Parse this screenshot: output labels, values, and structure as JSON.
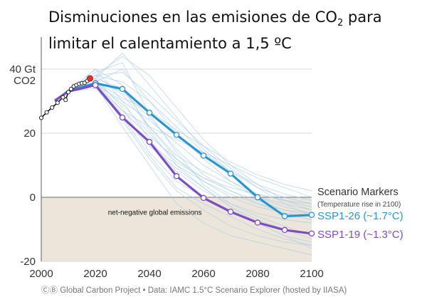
{
  "title": {
    "line1_pre": "Disminuciones en las emisiones de CO",
    "line1_sub": "2",
    "line1_post": " para",
    "line2": "limitar el calentamiento a 1,5 ºC"
  },
  "footer": "ⒸⒷ Global Carbon Project  •  Data: IAMC 1.5°C Scenario Explorer (hosted by IIASA)",
  "chart_data": {
    "type": "line",
    "title": "Disminuciones en las emisiones de CO2 para limitar el calentamiento a 1,5 ºC",
    "ylabel": "CO2",
    "ylim": [
      -20,
      50
    ],
    "xlim": [
      2000,
      2100
    ],
    "x_ticks": [
      "2000",
      "2020",
      "2040",
      "2060",
      "2080",
      "2100"
    ],
    "y_ticks": [
      {
        "value": 40,
        "label": "40 Gt"
      },
      {
        "value": 20,
        "label": "20"
      },
      {
        "value": 0,
        "label": "0"
      },
      {
        "value": -20,
        "label": "-20"
      }
    ],
    "y_unit_label": "CO2",
    "grid": true,
    "shaded_region": {
      "y_from": 0,
      "y_to": -20,
      "label": "net-negative global emissions",
      "color": "#ece6da"
    },
    "legend_title": "Scenario Markers",
    "legend_subtitle": "(Temperature rise in 2100)",
    "historical": {
      "color": "#111111",
      "x": [
        2000,
        2002,
        2004,
        2006,
        2008,
        2009,
        2010,
        2011,
        2012,
        2013,
        2014,
        2015,
        2016,
        2017,
        2018
      ],
      "y": [
        24.8,
        26.5,
        28.0,
        29.5,
        31.2,
        30.4,
        32.8,
        33.8,
        34.6,
        35.0,
        35.4,
        35.6,
        35.7,
        36.3,
        37.1
      ],
      "highlight_last_color": "#e8322c"
    },
    "series": [
      {
        "name": "SSP1-26 (~1.7°C)",
        "color": "#2b95d2",
        "x": [
          2005,
          2010,
          2020,
          2030,
          2040,
          2050,
          2060,
          2070,
          2080,
          2090,
          2100
        ],
        "y": [
          30.0,
          33.2,
          35.6,
          33.8,
          26.4,
          19.5,
          13.0,
          7.4,
          0.0,
          -5.9,
          -5.5
        ]
      },
      {
        "name": "SSP1-19 (~1.3°C)",
        "color": "#7d4cc4",
        "x": [
          2005,
          2010,
          2020,
          2030,
          2040,
          2050,
          2060,
          2070,
          2080,
          2090,
          2100
        ],
        "y": [
          30.2,
          33.0,
          35.0,
          24.9,
          17.3,
          6.6,
          -0.2,
          -4.5,
          -7.9,
          -10.2,
          -11.3
        ]
      }
    ],
    "background_scenarios": {
      "color": "#aecfe8",
      "x": [
        2010,
        2020,
        2030,
        2040,
        2050,
        2060,
        2070,
        2080,
        2090,
        2100
      ],
      "series": [
        [
          33,
          36,
          40,
          30,
          20,
          12,
          5,
          0,
          -3,
          -5
        ],
        [
          33,
          38,
          32,
          22,
          12,
          5,
          0,
          -3,
          -5,
          -6
        ],
        [
          33,
          40,
          30,
          18,
          8,
          2,
          -2,
          -6,
          -9,
          -12
        ],
        [
          33,
          35,
          24,
          12,
          2,
          -4,
          -9,
          -12,
          -14,
          -15
        ],
        [
          33,
          37,
          45,
          35,
          25,
          15,
          8,
          3,
          0,
          -2
        ],
        [
          33,
          36,
          27,
          19,
          12,
          6,
          2,
          -1,
          -4,
          -6
        ],
        [
          33,
          39,
          42,
          26,
          14,
          4,
          -2,
          -5,
          -7,
          -8
        ],
        [
          33,
          35,
          30,
          24,
          17,
          10,
          5,
          1,
          -1,
          -2
        ],
        [
          33,
          38,
          36,
          30,
          22,
          14,
          8,
          4,
          1,
          -1
        ],
        [
          33,
          35,
          26,
          16,
          9,
          3,
          -3,
          -7,
          -10,
          -13
        ],
        [
          33,
          37,
          28,
          14,
          5,
          0,
          -4,
          -8,
          -12,
          -16
        ],
        [
          33,
          36,
          33,
          25,
          15,
          7,
          2,
          -2,
          -5,
          -7
        ],
        [
          33,
          34,
          25,
          17,
          10,
          5,
          1,
          -2,
          -4,
          -5
        ],
        [
          33,
          40,
          35,
          21,
          10,
          3,
          -3,
          -8,
          -12,
          -14
        ],
        [
          33,
          36,
          31,
          27,
          21,
          16,
          11,
          7,
          4,
          2
        ],
        [
          33,
          35,
          22,
          10,
          -2,
          -8,
          -12,
          -14,
          -16,
          -18
        ],
        [
          33,
          38,
          44,
          38,
          28,
          18,
          10,
          4,
          -1,
          -4
        ],
        [
          33,
          36,
          29,
          20,
          11,
          6,
          3,
          1,
          -1,
          -3
        ],
        [
          33,
          35,
          27,
          22,
          18,
          14,
          10,
          6,
          3,
          0
        ],
        [
          33,
          37,
          34,
          22,
          13,
          8,
          4,
          0,
          -2,
          -4
        ],
        [
          33,
          36,
          25,
          13,
          3,
          -2,
          -6,
          -10,
          -13,
          -15
        ],
        [
          33,
          38,
          39,
          32,
          24,
          16,
          9,
          3,
          -2,
          -6
        ]
      ]
    }
  }
}
